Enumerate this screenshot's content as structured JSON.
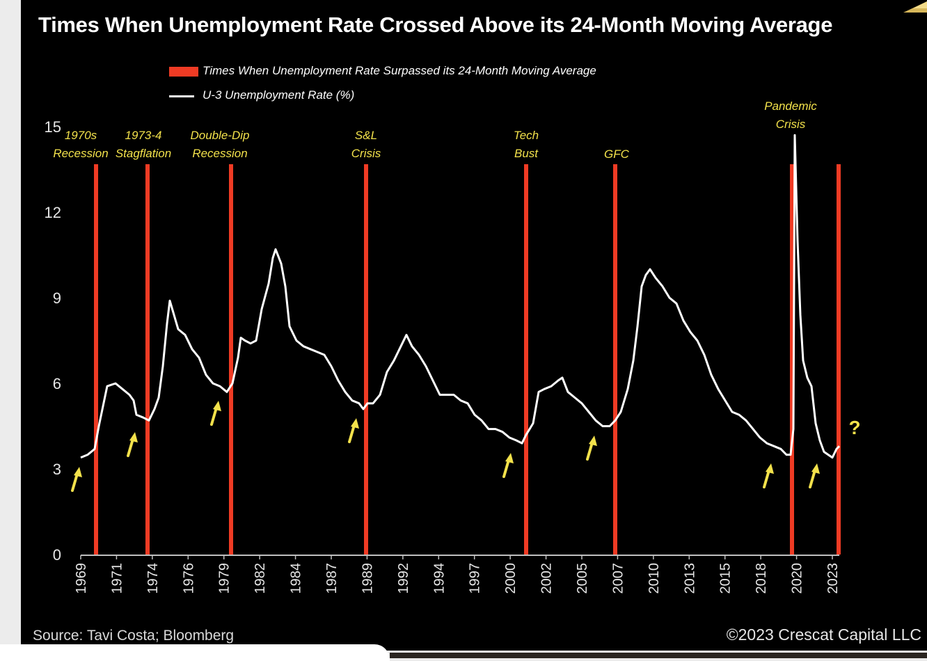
{
  "chart_data": {
    "type": "line",
    "title": "Times When Unemployment Rate Crossed Above its 24-Month Moving Average",
    "ylim": [
      0,
      15
    ],
    "yticks": [
      "0",
      "3",
      "6",
      "9",
      "12",
      "15"
    ],
    "xlim": [
      1969.0,
      2023.5
    ],
    "xticks": [
      "1969",
      "1971",
      "1974",
      "1976",
      "1979",
      "1982",
      "1984",
      "1987",
      "1989",
      "1992",
      "1994",
      "1997",
      "2000",
      "2002",
      "2005",
      "2007",
      "2010",
      "2013",
      "2015",
      "2018",
      "2020",
      "2023"
    ],
    "legend": [
      {
        "label": "Times When Unemployment Rate Surpassed its 24-Month Moving Average",
        "color": "#ef3b24",
        "kind": "bar"
      },
      {
        "label": "U-3 Unemployment Rate (%)",
        "color": "#ffffff",
        "kind": "line"
      }
    ],
    "series": [
      {
        "name": "U-3 Unemployment Rate (%)",
        "points": [
          [
            1969.0,
            3.4
          ],
          [
            1969.5,
            3.5
          ],
          [
            1970.0,
            3.7
          ],
          [
            1970.3,
            4.5
          ],
          [
            1970.6,
            5.2
          ],
          [
            1970.9,
            5.9
          ],
          [
            1971.5,
            6.0
          ],
          [
            1972.0,
            5.8
          ],
          [
            1972.5,
            5.6
          ],
          [
            1972.8,
            5.4
          ],
          [
            1973.0,
            4.9
          ],
          [
            1973.5,
            4.8
          ],
          [
            1973.9,
            4.7
          ],
          [
            1974.3,
            5.1
          ],
          [
            1974.6,
            5.5
          ],
          [
            1974.9,
            6.6
          ],
          [
            1975.2,
            8.1
          ],
          [
            1975.4,
            8.9
          ],
          [
            1975.7,
            8.4
          ],
          [
            1976.0,
            7.9
          ],
          [
            1976.5,
            7.7
          ],
          [
            1977.0,
            7.2
          ],
          [
            1977.5,
            6.9
          ],
          [
            1978.0,
            6.3
          ],
          [
            1978.5,
            6.0
          ],
          [
            1979.0,
            5.9
          ],
          [
            1979.5,
            5.7
          ],
          [
            1979.9,
            6.0
          ],
          [
            1980.3,
            6.9
          ],
          [
            1980.5,
            7.6
          ],
          [
            1980.8,
            7.5
          ],
          [
            1981.2,
            7.4
          ],
          [
            1981.6,
            7.5
          ],
          [
            1982.0,
            8.6
          ],
          [
            1982.5,
            9.5
          ],
          [
            1982.8,
            10.4
          ],
          [
            1983.0,
            10.7
          ],
          [
            1983.4,
            10.2
          ],
          [
            1983.7,
            9.4
          ],
          [
            1984.0,
            8.0
          ],
          [
            1984.5,
            7.5
          ],
          [
            1985.0,
            7.3
          ],
          [
            1985.5,
            7.2
          ],
          [
            1986.0,
            7.1
          ],
          [
            1986.5,
            7.0
          ],
          [
            1987.0,
            6.6
          ],
          [
            1987.5,
            6.1
          ],
          [
            1988.0,
            5.7
          ],
          [
            1988.5,
            5.4
          ],
          [
            1989.0,
            5.3
          ],
          [
            1989.3,
            5.1
          ],
          [
            1989.6,
            5.3
          ],
          [
            1990.0,
            5.3
          ],
          [
            1990.5,
            5.6
          ],
          [
            1991.0,
            6.4
          ],
          [
            1991.5,
            6.8
          ],
          [
            1992.0,
            7.3
          ],
          [
            1992.4,
            7.7
          ],
          [
            1992.8,
            7.3
          ],
          [
            1993.3,
            7.0
          ],
          [
            1993.8,
            6.6
          ],
          [
            1994.3,
            6.1
          ],
          [
            1994.8,
            5.6
          ],
          [
            1995.3,
            5.6
          ],
          [
            1995.8,
            5.6
          ],
          [
            1996.3,
            5.4
          ],
          [
            1996.8,
            5.3
          ],
          [
            1997.3,
            4.9
          ],
          [
            1997.8,
            4.7
          ],
          [
            1998.3,
            4.4
          ],
          [
            1998.8,
            4.4
          ],
          [
            1999.3,
            4.3
          ],
          [
            1999.8,
            4.1
          ],
          [
            2000.3,
            4.0
          ],
          [
            2000.7,
            3.9
          ],
          [
            2001.0,
            4.2
          ],
          [
            2001.5,
            4.6
          ],
          [
            2001.9,
            5.7
          ],
          [
            2002.3,
            5.8
          ],
          [
            2002.8,
            5.9
          ],
          [
            2003.3,
            6.1
          ],
          [
            2003.6,
            6.2
          ],
          [
            2004.0,
            5.7
          ],
          [
            2004.5,
            5.5
          ],
          [
            2005.0,
            5.3
          ],
          [
            2005.5,
            5.0
          ],
          [
            2006.0,
            4.7
          ],
          [
            2006.5,
            4.5
          ],
          [
            2007.0,
            4.5
          ],
          [
            2007.4,
            4.7
          ],
          [
            2007.8,
            5.0
          ],
          [
            2008.3,
            5.8
          ],
          [
            2008.7,
            6.8
          ],
          [
            2009.0,
            8.0
          ],
          [
            2009.3,
            9.4
          ],
          [
            2009.6,
            9.8
          ],
          [
            2009.9,
            10.0
          ],
          [
            2010.3,
            9.7
          ],
          [
            2010.8,
            9.4
          ],
          [
            2011.3,
            9.0
          ],
          [
            2011.8,
            8.8
          ],
          [
            2012.3,
            8.2
          ],
          [
            2012.8,
            7.8
          ],
          [
            2013.3,
            7.5
          ],
          [
            2013.8,
            7.0
          ],
          [
            2014.3,
            6.3
          ],
          [
            2014.8,
            5.8
          ],
          [
            2015.3,
            5.4
          ],
          [
            2015.8,
            5.0
          ],
          [
            2016.3,
            4.9
          ],
          [
            2016.8,
            4.7
          ],
          [
            2017.3,
            4.4
          ],
          [
            2017.8,
            4.1
          ],
          [
            2018.3,
            3.9
          ],
          [
            2018.8,
            3.8
          ],
          [
            2019.3,
            3.7
          ],
          [
            2019.7,
            3.5
          ],
          [
            2020.0,
            3.5
          ],
          [
            2020.2,
            4.4
          ],
          [
            2020.3,
            14.7
          ],
          [
            2020.5,
            11.0
          ],
          [
            2020.7,
            8.4
          ],
          [
            2020.9,
            6.8
          ],
          [
            2021.2,
            6.2
          ],
          [
            2021.5,
            5.9
          ],
          [
            2021.8,
            4.6
          ],
          [
            2022.1,
            4.0
          ],
          [
            2022.4,
            3.6
          ],
          [
            2022.7,
            3.5
          ],
          [
            2023.0,
            3.4
          ],
          [
            2023.3,
            3.7
          ],
          [
            2023.5,
            3.8
          ]
        ]
      }
    ],
    "crossing_bars": [
      1970.1,
      1973.8,
      1979.8,
      1989.5,
      2001.0,
      2007.4,
      2020.1,
      2023.45
    ],
    "event_labels": [
      {
        "text_lines": [
          "1970s",
          "Recession"
        ],
        "x": 1969.0
      },
      {
        "text_lines": [
          "1973-4",
          "Stagflation"
        ],
        "x": 1973.5
      },
      {
        "text_lines": [
          "Double-Dip",
          "Recession"
        ],
        "x": 1979.0
      },
      {
        "text_lines": [
          "S&L",
          "Crisis"
        ],
        "x": 1989.5
      },
      {
        "text_lines": [
          "Tech",
          "Bust"
        ],
        "x": 2001.0
      },
      {
        "text_lines": [
          "GFC"
        ],
        "x": 2007.5
      },
      {
        "text_lines": [
          "Pandemic",
          "Crisis"
        ],
        "x": 2020.0
      }
    ],
    "arrows": [
      1969.0,
      1973.0,
      1979.0,
      1988.9,
      2000.0,
      2006.0,
      2018.7,
      2022.0
    ],
    "question_mark": "?"
  },
  "source": "Source: Tavi Costa; Bloomberg",
  "copyright": "©2023 Crescat Capital LLC",
  "colors": {
    "background": "#000000",
    "bar": "#ef3b24",
    "line": "#ffffff",
    "annotation": "#f2e14b",
    "axis_text": "#e6e6e6"
  }
}
